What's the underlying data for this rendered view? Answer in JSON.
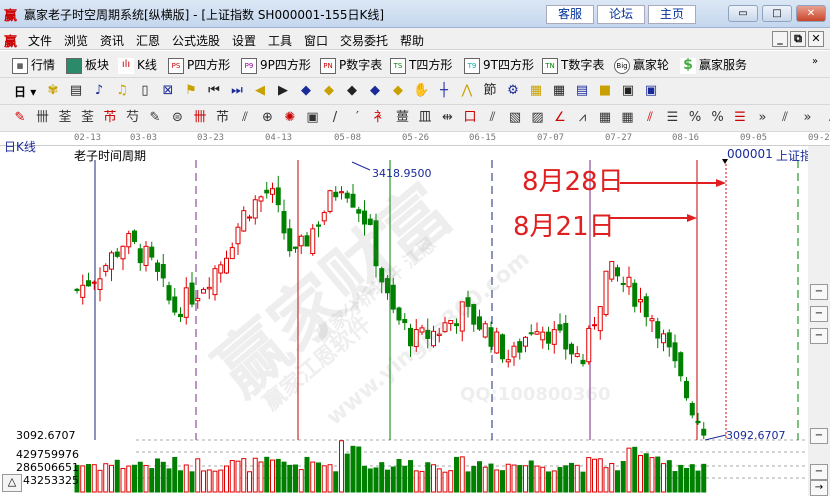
{
  "window": {
    "title": "赢家老子时空周期系统[纵横版] - [上证指数  SH000001-155日K线]",
    "web_buttons": [
      "客服",
      "论坛",
      "主页"
    ]
  },
  "menu": [
    "文件",
    "浏览",
    "资讯",
    "汇恩",
    "公式选股",
    "设置",
    "工具",
    "窗口",
    "交易委托",
    "帮助"
  ],
  "toolbar1": [
    {
      "icon": "PS",
      "label": "P四方形"
    },
    {
      "icon": "P9",
      "label": "9P四方形"
    },
    {
      "icon": "PN",
      "label": "P数字表"
    },
    {
      "icon": "TS",
      "label": "T四方形"
    },
    {
      "icon": "T9",
      "label": "9T四方形"
    },
    {
      "icon": "TN",
      "label": "T数字表"
    }
  ],
  "toolbar1_fixed": {
    "quotes": "行情",
    "sectors": "板块",
    "kline": "K线",
    "wheel": "赢家轮",
    "service": "赢家服务"
  },
  "toolbar2": {
    "period": "日"
  },
  "date_axis": [
    "02-13",
    "03-03",
    "03-23",
    "04-13",
    "05-08",
    "05-26",
    "06-15",
    "07-07",
    "07-27",
    "08-16",
    "09-05",
    "09-2"
  ],
  "chart": {
    "period_label": "日K线",
    "indicator_title": "老子时间周期",
    "symbol": "000001",
    "symbol_name": "上证指数",
    "high_label": "3418.9500",
    "low_label": "3092.6707",
    "price_axis_low": "3092.6707",
    "volume_ticks": [
      "429759976",
      "286506651",
      "143253325"
    ],
    "annotations": [
      "8月28日",
      "8月21日"
    ],
    "watermark": [
      "赢家财富",
      "赢家江恩软件",
      "赢家分析软件 江恩",
      "www.yingjia360.com",
      "QQ:100800360"
    ],
    "up_color": "#e00000",
    "down_color": "#008000",
    "close_anchors": [
      3277,
      3302,
      3339,
      3314,
      3252,
      3277,
      3314,
      3376,
      3400,
      3314,
      3363,
      3413,
      3363,
      3252,
      3215,
      3228,
      3252,
      3228,
      3190,
      3240,
      3215,
      3190,
      3302,
      3277,
      3240,
      3166,
      3104
    ],
    "cycle_lines": [
      {
        "color": "#1a2a7a",
        "style": "solid"
      },
      {
        "color": "#7a2a8a",
        "style": "dashed"
      },
      {
        "color": "#c00000",
        "style": "solid"
      },
      {
        "color": "#008000",
        "style": "solid"
      },
      {
        "color": "#1a2a7a",
        "style": "dashed"
      },
      {
        "color": "#7a2a8a",
        "style": "solid"
      },
      {
        "color": "#c00000",
        "style": "solid"
      },
      {
        "color": "#e00000",
        "style": "dotted"
      },
      {
        "color": "#008000",
        "style": "dashed"
      }
    ]
  }
}
